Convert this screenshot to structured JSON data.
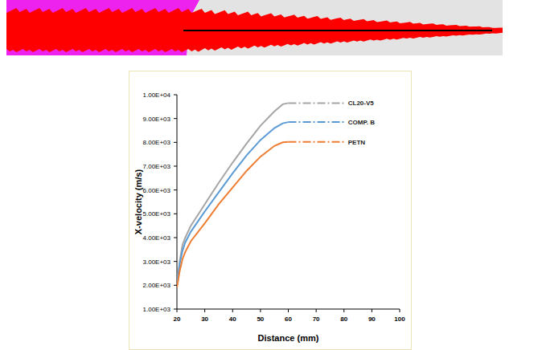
{
  "chart_data": {
    "type": "line",
    "x_label": "Distance (mm)",
    "y_label": "X-velocity (m/s)",
    "x": [
      20,
      21,
      22,
      23,
      25,
      30,
      35,
      40,
      45,
      50,
      55,
      58,
      60,
      65,
      70,
      75,
      80
    ],
    "series": [
      {
        "name": "CL20-V5",
        "color": "#a5a5a5",
        "values": [
          2000,
          3000,
          3700,
          4000,
          4500,
          5400,
          6300,
          7150,
          7950,
          8700,
          9300,
          9600,
          9650,
          9650,
          9650,
          9650,
          9650
        ]
      },
      {
        "name": "COMP. B",
        "color": "#5b9bd5",
        "values": [
          2000,
          2900,
          3450,
          3800,
          4250,
          5100,
          5900,
          6700,
          7450,
          8100,
          8600,
          8800,
          8850,
          8850,
          8850,
          8850,
          8850
        ]
      },
      {
        "name": "PETN",
        "color": "#ed7d31",
        "values": [
          1900,
          2600,
          3100,
          3400,
          3850,
          4600,
          5400,
          6100,
          6800,
          7400,
          7850,
          8000,
          8020,
          8020,
          8020,
          8020,
          8020
        ]
      }
    ],
    "xlim": [
      20,
      100
    ],
    "ylim": [
      1000,
      10000
    ],
    "xticks": [
      20,
      30,
      40,
      50,
      60,
      70,
      80,
      90,
      100
    ],
    "yticks": [
      {
        "value": 1000,
        "label": "1.00E+03"
      },
      {
        "value": 2000,
        "label": "2.00E+03"
      },
      {
        "value": 3000,
        "label": "3.00E+03"
      },
      {
        "value": 4000,
        "label": "4.00E+03"
      },
      {
        "value": 5000,
        "label": "5.00E+03"
      },
      {
        "value": 6000,
        "label": "6.00E+03"
      },
      {
        "value": 7000,
        "label": "7.00E+03"
      },
      {
        "value": 8000,
        "label": "8.00E+03"
      },
      {
        "value": 9000,
        "label": "9.00E+03"
      },
      {
        "value": 10000,
        "label": "1.00E+04"
      }
    ],
    "grid": false
  }
}
